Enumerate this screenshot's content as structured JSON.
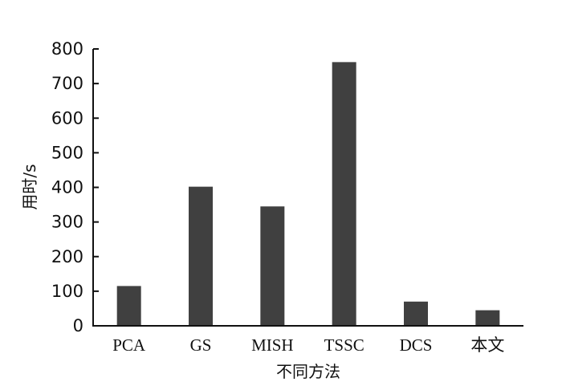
{
  "chart_data": {
    "type": "bar",
    "categories": [
      "PCA",
      "GS",
      "MISH",
      "TSSC",
      "DCS",
      "本文"
    ],
    "values": [
      115,
      402,
      345,
      762,
      70,
      45
    ],
    "xlabel": "不同方法",
    "ylabel": "用时/s",
    "ylim": [
      0,
      800
    ],
    "yticks": [
      "0",
      "100",
      "200",
      "300",
      "400",
      "500",
      "600",
      "700",
      "800"
    ],
    "grid": false,
    "bar_color": "#404040"
  }
}
